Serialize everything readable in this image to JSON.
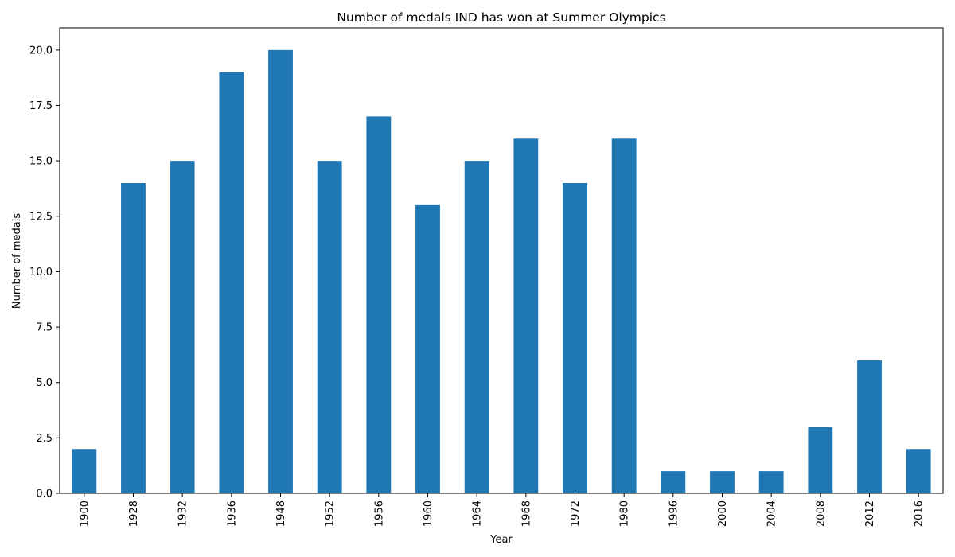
{
  "chart_data": {
    "type": "bar",
    "title": "Number of medals IND has won at Summer Olympics",
    "xlabel": "Year",
    "ylabel": "Number of medals",
    "categories": [
      "1900",
      "1928",
      "1932",
      "1936",
      "1948",
      "1952",
      "1956",
      "1960",
      "1964",
      "1968",
      "1972",
      "1980",
      "1996",
      "2000",
      "2004",
      "2008",
      "2012",
      "2016"
    ],
    "values": [
      2,
      14,
      15,
      19,
      20,
      15,
      17,
      13,
      15,
      16,
      14,
      16,
      1,
      1,
      1,
      3,
      6,
      2
    ],
    "ylim": [
      0,
      21
    ],
    "yticks": [
      "0.0",
      "2.5",
      "5.0",
      "7.5",
      "10.0",
      "12.5",
      "15.0",
      "17.5",
      "20.0"
    ],
    "bar_color": "#1f77b4",
    "grid": false,
    "legend": "none"
  }
}
